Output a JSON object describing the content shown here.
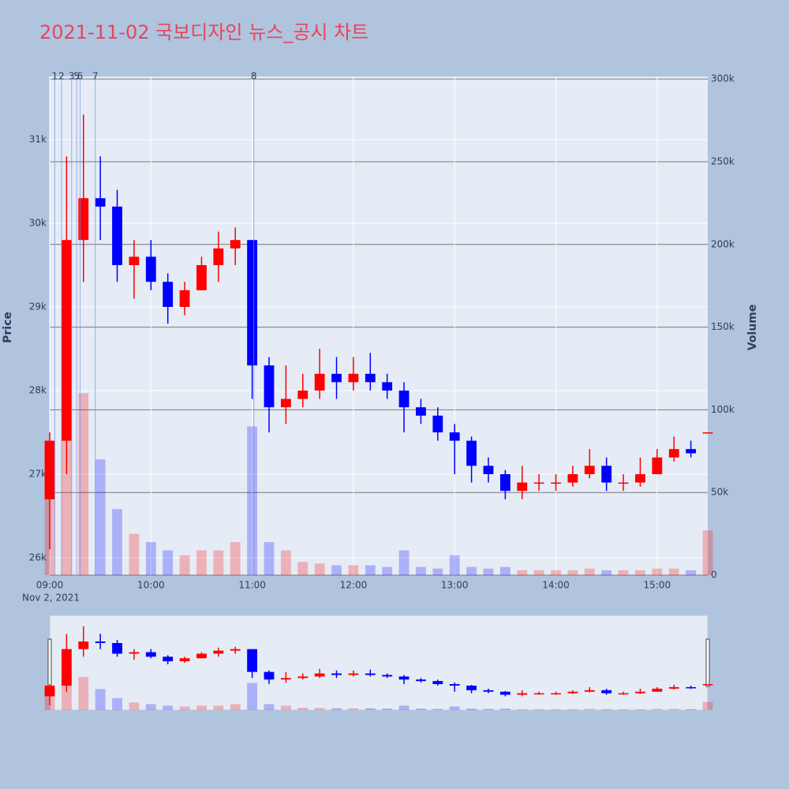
{
  "chart_data": {
    "type": "candlestick",
    "title": "2021-11-02 국보디자인 뉴스_공시 차트",
    "date_label": "Nov 2, 2021",
    "y_title": "Price",
    "y2_title": "Volume",
    "x": [
      "09:00",
      "09:10",
      "09:20",
      "09:30",
      "09:40",
      "09:50",
      "10:00",
      "10:10",
      "10:20",
      "10:30",
      "10:40",
      "10:50",
      "11:00",
      "11:10",
      "11:20",
      "11:30",
      "11:40",
      "11:50",
      "12:00",
      "12:10",
      "12:20",
      "12:30",
      "12:40",
      "12:50",
      "13:00",
      "13:10",
      "13:20",
      "13:30",
      "13:40",
      "13:50",
      "14:00",
      "14:10",
      "14:20",
      "14:30",
      "14:40",
      "14:50",
      "15:00",
      "15:10",
      "15:20",
      "15:30"
    ],
    "open": [
      26700,
      27400,
      29800,
      30300,
      30200,
      29500,
      29600,
      29300,
      29000,
      29200,
      29500,
      29700,
      29800,
      28300,
      27800,
      27900,
      28000,
      28200,
      28100,
      28200,
      28100,
      28000,
      27800,
      27700,
      27500,
      27400,
      27100,
      27000,
      26800,
      26900,
      26900,
      26900,
      27000,
      27100,
      26900,
      26900,
      27000,
      27200,
      27300,
      27500
    ],
    "high": [
      27500,
      30800,
      31300,
      30800,
      30400,
      29800,
      29800,
      29400,
      29300,
      29600,
      29900,
      29950,
      29800,
      28400,
      28300,
      28200,
      28500,
      28400,
      28400,
      28450,
      28200,
      28100,
      27900,
      27800,
      27600,
      27450,
      27200,
      27050,
      27100,
      27000,
      27000,
      27100,
      27300,
      27200,
      27000,
      27200,
      27300,
      27450,
      27400,
      27500
    ],
    "low": [
      26100,
      27000,
      29300,
      29800,
      29300,
      29100,
      29200,
      28800,
      28900,
      29200,
      29300,
      29500,
      27900,
      27500,
      27600,
      27800,
      27900,
      27900,
      28000,
      28000,
      27900,
      27500,
      27600,
      27400,
      27000,
      26900,
      26900,
      26700,
      26700,
      26800,
      26800,
      26850,
      26950,
      26800,
      26800,
      26850,
      27000,
      27150,
      27200,
      27500
    ],
    "close": [
      27400,
      29800,
      30300,
      30200,
      29500,
      29600,
      29300,
      29000,
      29200,
      29500,
      29700,
      29800,
      28300,
      27800,
      27900,
      28000,
      28200,
      28100,
      28200,
      28100,
      28000,
      27800,
      27700,
      27500,
      27400,
      27100,
      27000,
      26800,
      26900,
      26900,
      26900,
      27000,
      27100,
      26900,
      26900,
      27000,
      27200,
      27300,
      27250,
      27500
    ],
    "volume": [
      80000,
      150000,
      110000,
      70000,
      40000,
      25000,
      20000,
      15000,
      12000,
      15000,
      15000,
      20000,
      90000,
      20000,
      15000,
      8000,
      7000,
      6000,
      6000,
      6000,
      5000,
      15000,
      5000,
      4000,
      12000,
      5000,
      4000,
      5000,
      3000,
      3000,
      3000,
      3000,
      4000,
      3000,
      3000,
      3000,
      4000,
      4000,
      3000,
      27000
    ],
    "up_color": "#ff0000",
    "down_color": "#0000ff",
    "xlim": [
      "09:00",
      "15:30"
    ],
    "xticks": [
      "09:00",
      "10:00",
      "11:00",
      "12:00",
      "13:00",
      "14:00",
      "15:00"
    ],
    "ylim": [
      25792,
      31755
    ],
    "yticks": [
      {
        "value": 26000,
        "label": "26k"
      },
      {
        "value": 27000,
        "label": "27k"
      },
      {
        "value": 28000,
        "label": "28k"
      },
      {
        "value": 29000,
        "label": "29k"
      },
      {
        "value": 30000,
        "label": "30k"
      },
      {
        "value": 31000,
        "label": "31k"
      }
    ],
    "y2lim": [
      0,
      301500
    ],
    "y2ticks": [
      0,
      {
        "value": 50000,
        "label": "50k"
      },
      {
        "value": 100000,
        "label": "100k"
      },
      {
        "value": 150000,
        "label": "150k"
      },
      {
        "value": 200000,
        "label": "200k"
      },
      {
        "value": 250000,
        "label": "250k"
      },
      {
        "value": 300000,
        "label": "300k"
      }
    ],
    "news": [
      {
        "label": "1",
        "x": "09:03"
      },
      {
        "label": "2",
        "x": "09:07"
      },
      {
        "label": "3",
        "x": "09:13"
      },
      {
        "label": "5",
        "x": "09:16"
      },
      {
        "label": "6",
        "x": "09:18"
      },
      {
        "label": "7",
        "x": "09:27"
      },
      {
        "label": "8",
        "x": "11:01"
      }
    ]
  }
}
